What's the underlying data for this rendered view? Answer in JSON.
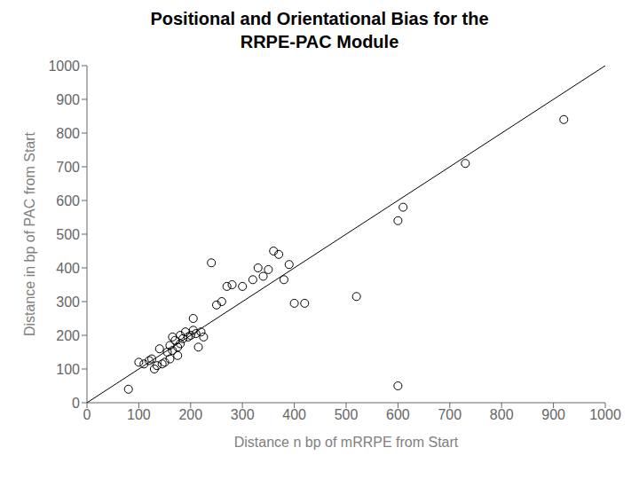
{
  "chart_data": {
    "type": "scatter",
    "title": "Positional and Orientational Bias for the\nRRPE-PAC Module",
    "xlabel": "Distance  n bp of mRRPE from Start",
    "ylabel": "Distance in bp of PAC from Start",
    "xlim": [
      0,
      1000
    ],
    "ylim": [
      0,
      1000
    ],
    "xticks": [
      0,
      100,
      200,
      300,
      400,
      500,
      600,
      700,
      800,
      900,
      1000
    ],
    "yticks": [
      0,
      100,
      200,
      300,
      400,
      500,
      600,
      700,
      800,
      900,
      1000
    ],
    "grid": false,
    "series": [
      {
        "type": "line",
        "color": "black",
        "x": [
          0,
          1000
        ],
        "values": [
          0,
          1000
        ]
      },
      {
        "type": "scatter",
        "color": "black",
        "marker": "circle",
        "x": [
          80,
          100,
          110,
          120,
          125,
          130,
          135,
          140,
          145,
          150,
          155,
          160,
          160,
          165,
          165,
          170,
          175,
          175,
          180,
          180,
          185,
          190,
          195,
          200,
          205,
          205,
          210,
          215,
          220,
          225,
          240,
          250,
          260,
          270,
          280,
          300,
          320,
          330,
          340,
          350,
          360,
          370,
          380,
          390,
          400,
          420,
          520,
          600,
          610,
          600,
          730,
          920
        ],
        "values": [
          40,
          120,
          115,
          125,
          130,
          100,
          110,
          160,
          115,
          120,
          150,
          130,
          170,
          155,
          195,
          185,
          140,
          165,
          200,
          175,
          190,
          210,
          195,
          200,
          215,
          250,
          205,
          165,
          210,
          195,
          415,
          290,
          300,
          345,
          350,
          345,
          365,
          400,
          375,
          395,
          450,
          440,
          365,
          410,
          295,
          295,
          315,
          540,
          580,
          50,
          710,
          840
        ]
      }
    ]
  }
}
